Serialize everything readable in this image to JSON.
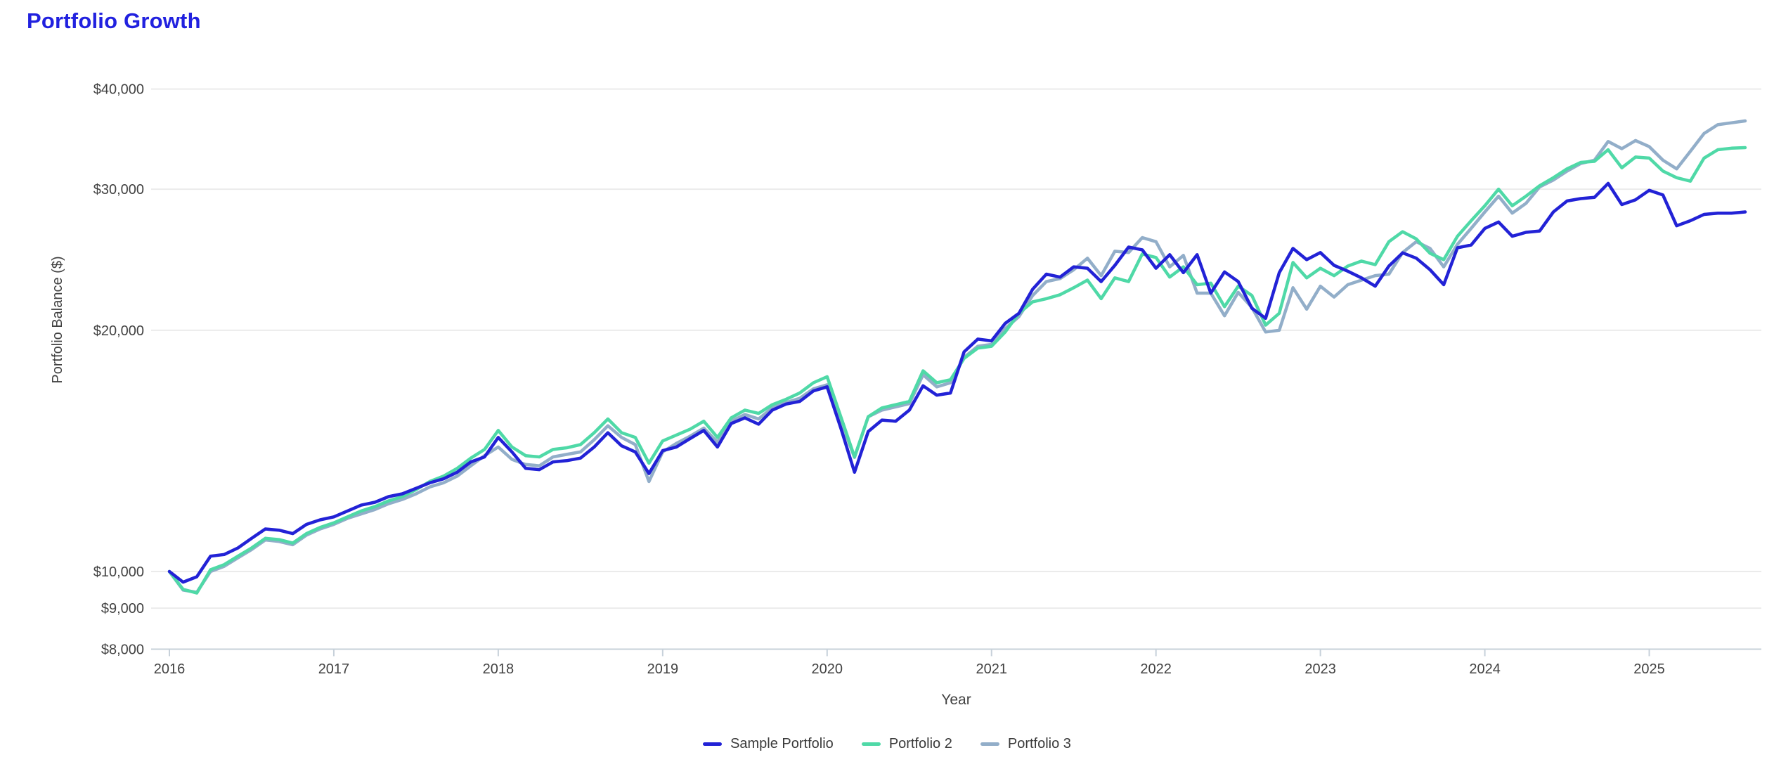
{
  "header": {
    "title": "Portfolio Growth",
    "title_color": "#2121df"
  },
  "axes": {
    "y_label": "Portfolio Balance ($)",
    "x_label": "Year",
    "y_ticks": [
      {
        "value": 40000,
        "label": "$40,000"
      },
      {
        "value": 30000,
        "label": "$30,000"
      },
      {
        "value": 20000,
        "label": "$20,000"
      },
      {
        "value": 10000,
        "label": "$10,000"
      },
      {
        "value": 9000,
        "label": "$9,000"
      },
      {
        "value": 8000,
        "label": "$8,000"
      }
    ],
    "x_ticks": [
      {
        "year": 2016,
        "label": "2016"
      },
      {
        "year": 2017,
        "label": "2017"
      },
      {
        "year": 2018,
        "label": "2018"
      },
      {
        "year": 2019,
        "label": "2019"
      },
      {
        "year": 2020,
        "label": "2020"
      },
      {
        "year": 2021,
        "label": "2021"
      },
      {
        "year": 2022,
        "label": "2022"
      },
      {
        "year": 2023,
        "label": "2023"
      },
      {
        "year": 2024,
        "label": "2024"
      },
      {
        "year": 2025,
        "label": "2025"
      }
    ],
    "tick_color": "#424242",
    "grid_color": "#ebebeb",
    "axis_line_color": "#c7d1da"
  },
  "legend": {
    "items": [
      {
        "label": "Sample Portfolio",
        "color": "#2222d6"
      },
      {
        "label": "Portfolio 2",
        "color": "#4fd9a7"
      },
      {
        "label": "Portfolio 3",
        "color": "#92aec9"
      }
    ]
  },
  "chart_data": {
    "type": "line",
    "title": "Portfolio Growth",
    "xlabel": "Year",
    "ylabel": "Portfolio Balance ($)",
    "y_scale": "log",
    "ylim": [
      8000,
      40000
    ],
    "y_tick_values": [
      8000,
      9000,
      10000,
      20000,
      30000,
      40000
    ],
    "x_start": "2016-01",
    "x_end": "2025-08",
    "frequency": "monthly",
    "points_per_series": 116,
    "grid": "horizontal",
    "legend_position": "bottom",
    "starting_balance": 10000,
    "series": [
      {
        "name": "Sample Portfolio",
        "color": "#2222d6",
        "values": [
          10000,
          9700,
          9850,
          10450,
          10500,
          10700,
          11000,
          11300,
          11260,
          11150,
          11450,
          11600,
          11700,
          11900,
          12100,
          12200,
          12400,
          12500,
          12700,
          12900,
          13050,
          13300,
          13700,
          13900,
          14700,
          14100,
          13450,
          13400,
          13700,
          13750,
          13850,
          14300,
          14900,
          14350,
          14100,
          13250,
          14150,
          14300,
          14650,
          15000,
          14300,
          15300,
          15550,
          15270,
          15900,
          16180,
          16300,
          16800,
          17000,
          15100,
          13300,
          14950,
          15450,
          15400,
          15900,
          17050,
          16600,
          16700,
          18800,
          19500,
          19400,
          20400,
          21000,
          22500,
          23500,
          23300,
          24000,
          23900,
          23000,
          24100,
          25400,
          25200,
          23900,
          24850,
          23600,
          24850,
          22250,
          23650,
          23000,
          21300,
          20700,
          23600,
          25300,
          24500,
          25000,
          24100,
          23700,
          23250,
          22700,
          24050,
          24980,
          24600,
          23800,
          22800,
          25350,
          25550,
          26800,
          27300,
          26200,
          26500,
          26600,
          28100,
          29000,
          29200,
          29300,
          30500,
          28700,
          29100,
          29900,
          29500,
          27000,
          27400,
          27900,
          28000,
          28000,
          28100
        ]
      },
      {
        "name": "Portfolio 2",
        "color": "#4fd9a7",
        "values": [
          10000,
          9500,
          9400,
          10050,
          10200,
          10450,
          10700,
          11000,
          10960,
          10850,
          11150,
          11350,
          11500,
          11700,
          11900,
          12050,
          12250,
          12400,
          12650,
          12950,
          13150,
          13450,
          13850,
          14200,
          15000,
          14300,
          13950,
          13900,
          14200,
          14270,
          14400,
          14900,
          15500,
          14900,
          14700,
          13650,
          14550,
          14800,
          15050,
          15400,
          14700,
          15550,
          15900,
          15750,
          16150,
          16400,
          16700,
          17200,
          17500,
          15600,
          13900,
          15600,
          16000,
          16150,
          16300,
          17800,
          17200,
          17350,
          18450,
          19000,
          19100,
          19900,
          21000,
          21700,
          21900,
          22150,
          22600,
          23100,
          21900,
          23250,
          23000,
          24900,
          24650,
          23300,
          24000,
          22800,
          22900,
          21400,
          22700,
          22100,
          20300,
          21000,
          24300,
          23250,
          23900,
          23400,
          24050,
          24400,
          24150,
          25800,
          26550,
          26000,
          24950,
          24500,
          26200,
          27400,
          28600,
          30000,
          28600,
          29400,
          30300,
          31000,
          31800,
          32400,
          32500,
          33600,
          31900,
          32900,
          32800,
          31600,
          31000,
          30700,
          32800,
          33600,
          33750,
          33800
        ]
      },
      {
        "name": "Portfolio 3",
        "color": "#92aec9",
        "values": [
          10000,
          9480,
          9420,
          10000,
          10150,
          10400,
          10650,
          10950,
          10900,
          10800,
          11100,
          11300,
          11450,
          11650,
          11800,
          11950,
          12150,
          12300,
          12500,
          12750,
          12900,
          13150,
          13550,
          13950,
          14300,
          13800,
          13600,
          13550,
          13900,
          14000,
          14100,
          14600,
          15200,
          14700,
          14400,
          12950,
          14100,
          14450,
          14750,
          15100,
          14500,
          15400,
          15700,
          15500,
          16000,
          16250,
          16450,
          16900,
          17100,
          15400,
          13880,
          15600,
          15900,
          16050,
          16200,
          17600,
          17000,
          17200,
          18500,
          19100,
          19200,
          20100,
          20800,
          22100,
          23000,
          23200,
          23800,
          24600,
          23400,
          25100,
          25000,
          26100,
          25800,
          24000,
          24800,
          22250,
          22250,
          20850,
          22300,
          21350,
          19900,
          20000,
          22600,
          21250,
          22700,
          22000,
          22800,
          23100,
          23400,
          23500,
          25000,
          25800,
          25300,
          24000,
          25600,
          26800,
          28100,
          29400,
          28000,
          28800,
          30200,
          30800,
          31600,
          32300,
          32600,
          34400,
          33700,
          34500,
          33900,
          32600,
          31800,
          33450,
          35200,
          36100,
          36300,
          36500
        ]
      }
    ]
  }
}
